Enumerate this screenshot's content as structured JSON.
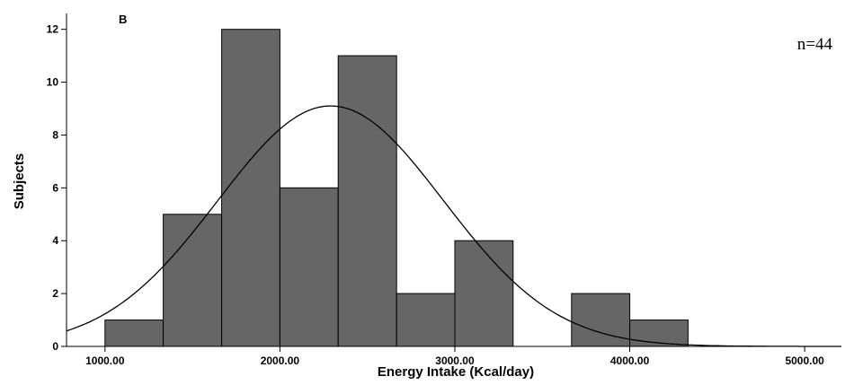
{
  "chart_data": {
    "type": "bar",
    "panel_label": "B",
    "annotation": "n=44",
    "xlabel": "Energy Intake (Kcal/day)",
    "ylabel": "Subjects",
    "xlim": [
      780,
      5210
    ],
    "ylim": [
      0,
      12.6
    ],
    "x_ticks": [
      1000,
      2000,
      3000,
      4000,
      5000
    ],
    "x_tick_labels": [
      "1000.00",
      "2000.00",
      "3000.00",
      "4000.00",
      "5000.00"
    ],
    "y_ticks": [
      0,
      2,
      4,
      6,
      8,
      10,
      12
    ],
    "y_tick_labels": [
      "0",
      "2",
      "4",
      "6",
      "8",
      "10",
      "12"
    ],
    "bins": [
      {
        "x0": 1000,
        "x1": 1333,
        "count": 1
      },
      {
        "x0": 1333,
        "x1": 1667,
        "count": 5
      },
      {
        "x0": 1667,
        "x1": 2000,
        "count": 12
      },
      {
        "x0": 2000,
        "x1": 2333,
        "count": 6
      },
      {
        "x0": 2333,
        "x1": 2667,
        "count": 11
      },
      {
        "x0": 2667,
        "x1": 3000,
        "count": 2
      },
      {
        "x0": 3000,
        "x1": 3333,
        "count": 4
      },
      {
        "x0": 3333,
        "x1": 3667,
        "count": 0
      },
      {
        "x0": 3667,
        "x1": 4000,
        "count": 2
      },
      {
        "x0": 4000,
        "x1": 4333,
        "count": 1
      }
    ],
    "normal_curve": {
      "mean": 2290,
      "sd": 645,
      "peak": 9.1
    },
    "bar_color": "#666666",
    "grid": false
  }
}
